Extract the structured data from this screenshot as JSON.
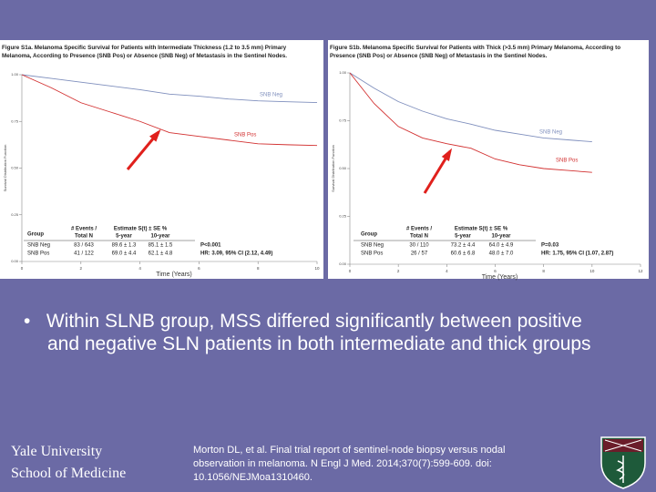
{
  "chart_data": [
    {
      "type": "line",
      "title": "Figure S1a. Melanoma Specific Survival for Patients with Intermediate Thickness (1.2 to 3.5 mm) Primary Melanoma, According to Presence (SNB Pos) or Absence (SNB Neg) of Metastasis in the Sentinel Nodes.",
      "xlabel": "Time (Years)",
      "ylabel": "Survival Distribution Function",
      "x": [
        0,
        1,
        2,
        3,
        4,
        5,
        6,
        7,
        8,
        9,
        10
      ],
      "series": [
        {
          "name": "SNB Neg",
          "color": "#7f8fbd",
          "values": [
            1.0,
            0.98,
            0.96,
            0.94,
            0.92,
            0.896,
            0.885,
            0.87,
            0.86,
            0.855,
            0.851
          ]
        },
        {
          "name": "SNB Pos",
          "color": "#d23030",
          "values": [
            1.0,
            0.93,
            0.85,
            0.8,
            0.75,
            0.69,
            0.67,
            0.65,
            0.63,
            0.625,
            0.621
          ]
        }
      ],
      "xlim": [
        0,
        10
      ],
      "ylim": [
        0,
        1
      ],
      "xticks": [
        0,
        2,
        4,
        6,
        8,
        10
      ],
      "yticks": [
        {
          "value": 0,
          "label": "0.00"
        },
        {
          "value": 0.25,
          "label": "0.25"
        },
        {
          "value": 0.5,
          "label": "0.50"
        },
        {
          "value": 0.75,
          "label": "0.75"
        },
        {
          "value": 1,
          "label": "1.00"
        }
      ],
      "table": {
        "header": [
          "Group",
          "# Events /",
          "Total N",
          "Estimate S(t) ± SE %",
          "5-year",
          "10-year"
        ],
        "rows": [
          [
            "SNB Neg",
            "83 / 643",
            "89.6 ± 1.3",
            "85.1 ± 1.5"
          ],
          [
            "SNB Pos",
            "41 / 122",
            "69.0 ± 4.4",
            "62.1 ± 4.8"
          ]
        ],
        "stats": [
          "P<0.001",
          "HR: 3.09, 95% CI (2.12, 4.49)"
        ]
      }
    },
    {
      "type": "line",
      "title": "Figure S1b. Melanoma Specific Survival for Patients with Thick (>3.5 mm) Primary Melanoma, According to Presence (SNB Pos) or Absence (SNB Neg) of Metastasis in the Sentinel Nodes.",
      "xlabel": "Time (Years)",
      "ylabel": "Survival Distribution Function",
      "x": [
        0,
        1,
        2,
        3,
        4,
        5,
        6,
        7,
        8,
        9,
        10
      ],
      "series": [
        {
          "name": "SNB Neg",
          "color": "#7f8fbd",
          "values": [
            1.0,
            0.92,
            0.85,
            0.8,
            0.76,
            0.732,
            0.7,
            0.68,
            0.66,
            0.65,
            0.64
          ]
        },
        {
          "name": "SNB Pos",
          "color": "#d23030",
          "values": [
            1.0,
            0.84,
            0.72,
            0.66,
            0.63,
            0.606,
            0.55,
            0.52,
            0.5,
            0.49,
            0.48
          ]
        }
      ],
      "xlim": [
        0,
        12
      ],
      "ylim": [
        0,
        1
      ],
      "xticks": [
        0,
        2,
        4,
        6,
        8,
        10,
        12
      ],
      "yticks": [
        {
          "value": 0,
          "label": "0.00"
        },
        {
          "value": 0.25,
          "label": "0.25"
        },
        {
          "value": 0.5,
          "label": "0.50"
        },
        {
          "value": 0.75,
          "label": "0.75"
        },
        {
          "value": 1,
          "label": "1.00"
        }
      ],
      "table": {
        "header": [
          "Group",
          "# Events /",
          "Total N",
          "Estimate S(t) ± SE %",
          "5-year",
          "10-year"
        ],
        "rows": [
          [
            "SNB Neg",
            "30 / 110",
            "73.2 ± 4.4",
            "64.0 ± 4.9"
          ],
          [
            "SNB Pos",
            "26 / 57",
            "60.6 ± 6.8",
            "48.0 ± 7.0"
          ]
        ],
        "stats": [
          "P=0.03",
          "HR: 1.75, 95% CI (1.07, 2.87)"
        ]
      }
    }
  ],
  "bullet": "Within SLNB group, MSS differed significantly between positive and negative SLN patients in both intermediate and thick groups",
  "institution": [
    "Yale University",
    "School of Medicine"
  ],
  "citation": "Morton DL, et al. Final trial report of sentinel-node biopsy versus nodal observation in melanoma. N Engl J Med. 2014;370(7):599-609. doi: 10.1056/NEJMoa1310460."
}
